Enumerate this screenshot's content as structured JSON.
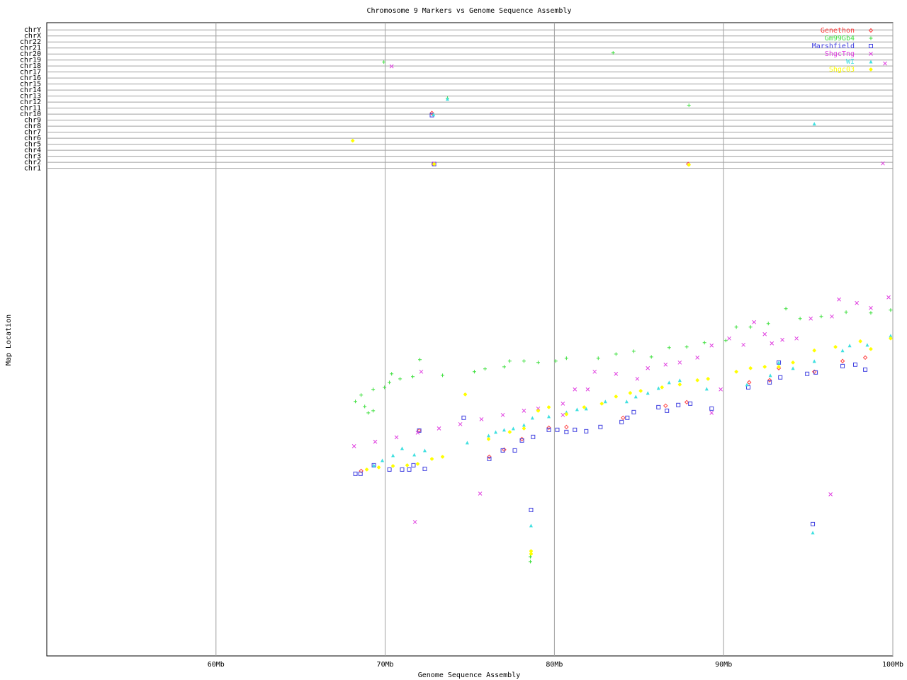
{
  "chart_data": {
    "type": "scatter",
    "title": "Chromosome 9 Markers vs Genome Sequence Assembly",
    "x_label": "Genome Sequence Assembly",
    "y_label": "Map Location",
    "xlim": [
      50,
      100
    ],
    "ylim": [
      0,
      105.2
    ],
    "xticks": [
      {
        "value": 60,
        "label": "60Mb"
      },
      {
        "value": 70,
        "label": "70Mb"
      },
      {
        "value": 80,
        "label": "80Mb"
      },
      {
        "value": 90,
        "label": "90Mb"
      },
      {
        "value": 100,
        "label": "100Mb"
      }
    ],
    "yticks": [
      {
        "value": 81,
        "label": "chr1"
      },
      {
        "value": 82,
        "label": "chr2"
      },
      {
        "value": 83,
        "label": "chr3"
      },
      {
        "value": 84,
        "label": "chr4"
      },
      {
        "value": 85,
        "label": "chr5"
      },
      {
        "value": 86,
        "label": "chr6"
      },
      {
        "value": 87,
        "label": "chr7"
      },
      {
        "value": 88,
        "label": "chr8"
      },
      {
        "value": 89,
        "label": "chr9"
      },
      {
        "value": 90,
        "label": "chr10"
      },
      {
        "value": 91,
        "label": "chr11"
      },
      {
        "value": 92,
        "label": "chr12"
      },
      {
        "value": 93,
        "label": "chr13"
      },
      {
        "value": 94,
        "label": "chr14"
      },
      {
        "value": 95,
        "label": "chr15"
      },
      {
        "value": 96,
        "label": "chr16"
      },
      {
        "value": 97,
        "label": "chr17"
      },
      {
        "value": 98,
        "label": "chr18"
      },
      {
        "value": 99,
        "label": "chr19"
      },
      {
        "value": 100,
        "label": "chr20"
      },
      {
        "value": 101,
        "label": "chr21"
      },
      {
        "value": 102,
        "label": "chr22"
      },
      {
        "value": 103,
        "label": "chrX"
      },
      {
        "value": 104,
        "label": "chrY"
      }
    ],
    "grid": true,
    "legend": "top-right",
    "series": [
      {
        "name": "Genethon",
        "color": "#ff4040",
        "marker": "diamond",
        "x": [
          68.58,
          72.01,
          76.15,
          77.03,
          78.08,
          79.67,
          80.71,
          84.06,
          86.57,
          87.82,
          91.51,
          92.72,
          93.26,
          95.36,
          97.03,
          98.37,
          72.85,
          87.91,
          72.76
        ],
        "values": [
          30.73,
          37.44,
          33.08,
          34.26,
          36.03,
          37.91,
          38.03,
          39.56,
          41.56,
          42.15,
          45.44,
          45.8,
          47.8,
          47.21,
          48.98,
          49.56,
          81.71,
          81.71,
          90.18
        ]
      },
      {
        "name": "Gm99Gb4",
        "color": "#40e040",
        "marker": "plus",
        "x": [
          68.24,
          68.58,
          68.79,
          69.0,
          69.29,
          69.29,
          69.96,
          70.25,
          70.38,
          70.88,
          71.63,
          72.05,
          73.39,
          75.27,
          75.9,
          77.03,
          77.36,
          78.2,
          79.04,
          80.08,
          80.71,
          82.59,
          83.64,
          84.69,
          85.73,
          86.78,
          87.82,
          88.87,
          90.13,
          90.75,
          91.59,
          92.64,
          93.68,
          94.52,
          95.77,
          97.24,
          98.7,
          99.87,
          78.58,
          78.58,
          69.92,
          83.47,
          73.68,
          87.95
        ],
        "values": [
          42.27,
          43.33,
          41.44,
          40.38,
          40.73,
          44.27,
          44.62,
          45.44,
          46.86,
          46.03,
          46.39,
          49.21,
          46.62,
          47.21,
          47.68,
          48.03,
          48.98,
          48.98,
          48.74,
          48.98,
          49.45,
          49.45,
          50.15,
          50.62,
          49.68,
          51.21,
          51.33,
          52.04,
          52.39,
          54.63,
          54.63,
          55.22,
          57.69,
          56.04,
          56.39,
          57.1,
          56.98,
          57.45,
          15.66,
          16.48,
          98.66,
          100.19,
          92.65,
          91.48
        ]
      },
      {
        "name": "Marshfield",
        "color": "#4040e0",
        "marker": "square",
        "x": [
          68.24,
          68.54,
          69.33,
          70.25,
          71.0,
          71.42,
          71.67,
          72.34,
          72.01,
          74.64,
          76.15,
          76.95,
          77.66,
          78.08,
          78.74,
          79.67,
          80.17,
          80.71,
          81.21,
          81.88,
          82.72,
          83.97,
          84.31,
          84.69,
          86.15,
          86.65,
          87.32,
          88.03,
          89.29,
          91.46,
          92.72,
          93.35,
          94.94,
          95.44,
          97.03,
          97.78,
          98.37,
          93.26,
          78.62,
          95.27,
          72.76,
          72.89
        ],
        "values": [
          30.26,
          30.26,
          31.67,
          30.96,
          30.96,
          30.96,
          31.67,
          31.08,
          37.44,
          39.56,
          32.73,
          34.14,
          34.14,
          35.79,
          36.38,
          37.56,
          37.56,
          37.2,
          37.56,
          37.32,
          38.03,
          38.85,
          39.56,
          40.5,
          41.32,
          40.73,
          41.68,
          41.91,
          41.09,
          44.62,
          45.44,
          46.27,
          46.86,
          47.09,
          48.15,
          48.39,
          47.56,
          48.74,
          24.25,
          21.9,
          89.83,
          81.71
        ]
      },
      {
        "name": "ShgcTng",
        "color": "#e040e0",
        "marker": "cross",
        "x": [
          68.16,
          69.41,
          70.67,
          71.92,
          73.18,
          74.44,
          75.69,
          76.95,
          78.2,
          79.04,
          80.5,
          80.5,
          81.21,
          81.97,
          82.38,
          83.64,
          84.9,
          85.52,
          86.57,
          87.41,
          88.45,
          89.29,
          89.83,
          89.29,
          90.33,
          91.17,
          91.8,
          92.43,
          92.85,
          93.47,
          94.31,
          95.15,
          96.4,
          96.82,
          97.87,
          98.7,
          99.75,
          72.13,
          75.61,
          71.76,
          96.32,
          70.38,
          99.54,
          99.41,
          72.89
        ],
        "values": [
          34.85,
          35.58,
          36.32,
          37.08,
          37.79,
          38.5,
          39.32,
          40.03,
          40.73,
          41.09,
          41.91,
          40.03,
          44.27,
          44.27,
          47.21,
          46.86,
          46.03,
          47.8,
          48.39,
          48.74,
          49.56,
          51.57,
          44.27,
          40.38,
          52.74,
          51.68,
          55.45,
          53.45,
          51.92,
          52.51,
          52.74,
          56.04,
          56.39,
          59.22,
          58.63,
          57.81,
          59.57,
          47.21,
          26.96,
          22.25,
          26.84,
          97.95,
          98.42,
          81.82,
          81.82
        ]
      },
      {
        "name": "WI",
        "color": "#40e0e0",
        "marker": "triangle",
        "x": [
          69.33,
          69.83,
          70.46,
          71.0,
          71.72,
          72.34,
          74.85,
          76.11,
          76.53,
          77.03,
          77.57,
          78.2,
          78.7,
          79.67,
          80.71,
          81.34,
          81.88,
          83.01,
          84.27,
          84.81,
          85.52,
          86.15,
          86.78,
          87.41,
          89.0,
          91.38,
          92.76,
          94.1,
          95.36,
          97.03,
          97.45,
          98.49,
          99.87,
          78.62,
          95.27,
          73.68,
          72.85,
          95.36,
          93.26
        ],
        "values": [
          31.67,
          32.49,
          33.32,
          34.49,
          33.44,
          34.14,
          35.44,
          36.61,
          37.2,
          37.56,
          37.79,
          38.38,
          39.56,
          39.79,
          40.5,
          40.97,
          41.09,
          42.27,
          42.27,
          43.09,
          43.68,
          44.5,
          45.44,
          45.8,
          44.38,
          45.09,
          46.62,
          47.8,
          48.98,
          50.74,
          51.57,
          51.68,
          53.21,
          21.66,
          20.49,
          92.54,
          89.95,
          88.42,
          48.74
        ]
      },
      {
        "name": "Shgc03",
        "color": "#ffff00",
        "marker": "star",
        "x": [
          68.91,
          69.62,
          70.46,
          71.3,
          71.92,
          72.76,
          73.39,
          76.11,
          77.36,
          78.2,
          79.04,
          79.67,
          80.71,
          81.76,
          82.8,
          83.64,
          84.48,
          85.1,
          86.36,
          87.41,
          88.45,
          89.08,
          90.75,
          91.59,
          92.43,
          93.26,
          94.1,
          95.36,
          96.61,
          98.08,
          98.7,
          99.87,
          74.73,
          78.62,
          78.62,
          68.08,
          72.89,
          87.95
        ],
        "values": [
          30.96,
          31.32,
          31.55,
          31.67,
          31.9,
          32.73,
          33.08,
          36.03,
          37.2,
          37.79,
          40.73,
          41.32,
          40.15,
          41.32,
          41.91,
          43.09,
          43.68,
          44.03,
          44.62,
          45.09,
          45.8,
          46.03,
          47.21,
          47.8,
          48.03,
          48.03,
          48.74,
          50.74,
          51.33,
          52.27,
          50.98,
          52.74,
          43.44,
          17.42,
          16.95,
          85.59,
          81.71,
          81.59
        ]
      }
    ]
  }
}
